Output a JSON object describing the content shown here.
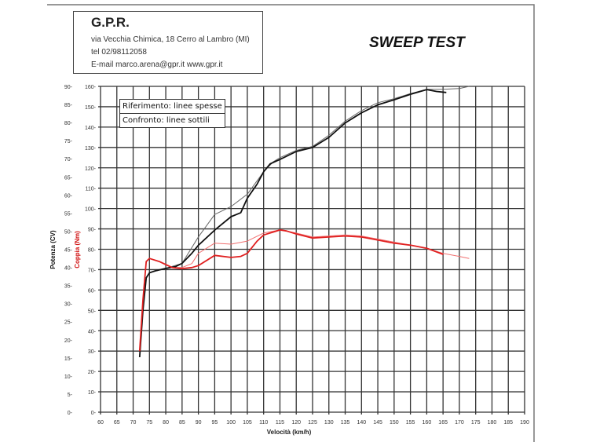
{
  "header": {
    "company": "G.P.R.",
    "address": "via Vecchia Chimica, 18 Cerro al Lambro (MI)",
    "phone": "tel 02/98112058",
    "contact": "E-mail marco.arena@gpr.it  www.gpr.it"
  },
  "chart_data": {
    "type": "line",
    "title": "SWEEP TEST",
    "xlabel": "Velocità (km/h)",
    "ylabel_left": "Potenza (CV)",
    "ylabel_right": "Coppia (Nm)",
    "xlim": [
      60,
      190
    ],
    "xticks": [
      60,
      65,
      70,
      75,
      80,
      85,
      90,
      95,
      100,
      105,
      110,
      115,
      120,
      125,
      130,
      135,
      140,
      145,
      150,
      155,
      160,
      165,
      170,
      175,
      180,
      185,
      190
    ],
    "ylim_power": [
      0,
      90
    ],
    "yticks_power": [
      0,
      5,
      10,
      15,
      20,
      25,
      30,
      35,
      40,
      45,
      50,
      55,
      60,
      65,
      70,
      75,
      80,
      85,
      90
    ],
    "ylim_torque": [
      0,
      160
    ],
    "yticks_torque": [
      0,
      10,
      20,
      30,
      40,
      50,
      60,
      70,
      80,
      90,
      100,
      110,
      120,
      130,
      140,
      150,
      160
    ],
    "grid": true,
    "legend": {
      "position": "top-left",
      "entries": [
        "Riferimento: linee spesse",
        "Confronto: linee sottili"
      ]
    },
    "colors": {
      "power": "#111111",
      "power_thin": "#666666",
      "torque": "#e02020",
      "torque_thin": "#f07070"
    },
    "series": [
      {
        "quantity": "power",
        "style": "thick",
        "axis": "power",
        "x": [
          72,
          73,
          74,
          75,
          77,
          80,
          83,
          85,
          88,
          90,
          95,
          100,
          103,
          105,
          108,
          110,
          112,
          115,
          120,
          125,
          130,
          135,
          140,
          145,
          150,
          155,
          160,
          163,
          166
        ],
        "y": [
          15.2,
          28.1,
          37.1,
          38.5,
          39.1,
          39.7,
          40.2,
          41.1,
          43.9,
          46.1,
          50.3,
          54.0,
          55.1,
          59.1,
          63.0,
          66.4,
          68.6,
          69.8,
          72.0,
          73.1,
          75.9,
          79.9,
          82.7,
          84.9,
          86.3,
          87.8,
          89.1,
          88.6,
          88.3
        ]
      },
      {
        "quantity": "power",
        "style": "thin",
        "axis": "power",
        "x": [
          72,
          73,
          74,
          75,
          80,
          85,
          90,
          95,
          100,
          105,
          110,
          113,
          115,
          120,
          125,
          130,
          135,
          140,
          145,
          150,
          155,
          160,
          165,
          170,
          173
        ],
        "y": [
          15.2,
          28.1,
          37.1,
          38.5,
          39.7,
          41.1,
          48.4,
          54.6,
          56.8,
          60.2,
          66.4,
          69.2,
          70.3,
          72.3,
          73.4,
          76.5,
          80.4,
          83.3,
          85.5,
          86.6,
          88.0,
          89.2,
          89.2,
          89.4,
          90.0
        ]
      },
      {
        "quantity": "torque",
        "style": "thick",
        "axis": "torque",
        "x": [
          72,
          73,
          74,
          75,
          78,
          80,
          82,
          85,
          88,
          90,
          95,
          100,
          103,
          105,
          108,
          110,
          113,
          115,
          117,
          120,
          125,
          130,
          135,
          140,
          145,
          150,
          155,
          160,
          165
        ],
        "y": [
          30,
          55,
          74,
          75.5,
          74,
          72.5,
          71,
          70.5,
          71,
          72,
          77,
          76,
          76.5,
          78,
          84,
          87,
          88.5,
          89.5,
          89,
          87.5,
          85.5,
          86,
          86.5,
          86,
          84.5,
          83,
          82,
          80.5,
          77.5
        ]
      },
      {
        "quantity": "torque",
        "style": "thin",
        "axis": "torque",
        "x": [
          72,
          73,
          74,
          75,
          78,
          80,
          82,
          85,
          88,
          90,
          95,
          100,
          105,
          110,
          115,
          120,
          125,
          130,
          135,
          140,
          145,
          150,
          155,
          160,
          165,
          170,
          173
        ],
        "y": [
          30,
          55,
          74,
          75.5,
          74,
          72.5,
          71,
          71,
          73,
          78,
          83,
          82.5,
          84,
          88,
          89.5,
          88,
          86,
          86.5,
          87,
          86.5,
          85,
          83.5,
          82,
          80.5,
          78,
          76.5,
          75.5
        ]
      }
    ]
  }
}
